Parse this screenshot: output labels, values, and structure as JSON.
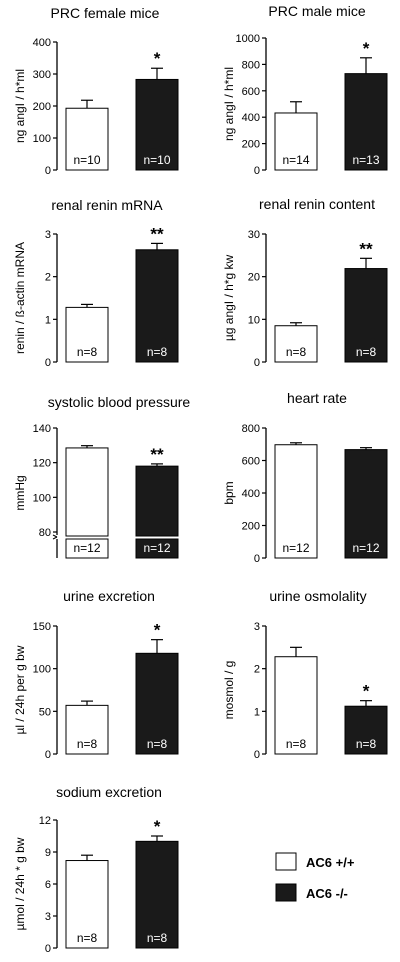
{
  "legend": {
    "items": [
      {
        "label": "AC6 +/+",
        "fill": "#ffffff"
      },
      {
        "label": "AC6 -/-",
        "fill": "#1a1a1a"
      }
    ]
  },
  "chart_data": [
    {
      "type": "bar",
      "title": "PRC female mice",
      "ylabel": "ng angI / h*ml",
      "ylim": [
        0,
        400
      ],
      "ticks": [
        0,
        100,
        200,
        300,
        400
      ],
      "categories": [
        "AC6 +/+",
        "AC6 -/-"
      ],
      "values": [
        193,
        283
      ],
      "errors": [
        25,
        35
      ],
      "n_labels": [
        "n=10",
        "n=10"
      ],
      "significance": "*",
      "axis_break": false
    },
    {
      "type": "bar",
      "title": "PRC male mice",
      "ylabel": "ng angI / h*ml",
      "ylim": [
        0,
        1000
      ],
      "ticks": [
        0,
        200,
        400,
        600,
        800,
        1000
      ],
      "categories": [
        "AC6 +/+",
        "AC6 -/-"
      ],
      "values": [
        432,
        730
      ],
      "errors": [
        85,
        120
      ],
      "n_labels": [
        "n=14",
        "n=13"
      ],
      "significance": "*",
      "axis_break": false
    },
    {
      "type": "bar",
      "title": "renal renin mRNA",
      "ylabel": "renin / ß-actin mRNA",
      "ylim": [
        0,
        3
      ],
      "ticks": [
        0,
        1,
        2,
        3
      ],
      "categories": [
        "AC6 +/+",
        "AC6 -/-"
      ],
      "values": [
        1.28,
        2.63
      ],
      "errors": [
        0.07,
        0.15
      ],
      "n_labels": [
        "n=8",
        "n=8"
      ],
      "significance": "**",
      "axis_break": false
    },
    {
      "type": "bar",
      "title": "renal renin content",
      "ylabel": "µg angI / h*g kw",
      "ylim": [
        0,
        30
      ],
      "ticks": [
        0,
        10,
        20,
        30
      ],
      "categories": [
        "AC6 +/+",
        "AC6 -/-"
      ],
      "values": [
        8.5,
        21.9
      ],
      "errors": [
        0.7,
        2.4
      ],
      "n_labels": [
        "n=8",
        "n=8"
      ],
      "significance": "**",
      "axis_break": false
    },
    {
      "type": "bar",
      "title": "systolic blood pressure",
      "ylabel": "mmHg",
      "ylim": [
        80,
        140
      ],
      "ticks": [
        80,
        100,
        120,
        140
      ],
      "categories": [
        "AC6 +/+",
        "AC6 -/-"
      ],
      "values": [
        128.5,
        118
      ],
      "errors": [
        1.3,
        1.3
      ],
      "n_labels": [
        "n=12",
        "n=12"
      ],
      "significance": "**",
      "axis_break": true
    },
    {
      "type": "bar",
      "title": "heart rate",
      "ylabel": "bpm",
      "ylim": [
        0,
        800
      ],
      "ticks": [
        0,
        200,
        400,
        600,
        800
      ],
      "categories": [
        "AC6 +/+",
        "AC6 -/-"
      ],
      "values": [
        697,
        667
      ],
      "errors": [
        12,
        12
      ],
      "n_labels": [
        "n=12",
        "n=12"
      ],
      "significance": "",
      "axis_break": false
    },
    {
      "type": "bar",
      "title": "urine excretion",
      "ylabel": "µl / 24h per g bw",
      "ylim": [
        0,
        150
      ],
      "ticks": [
        0,
        50,
        100,
        150
      ],
      "categories": [
        "AC6 +/+",
        "AC6 -/-"
      ],
      "values": [
        57,
        118
      ],
      "errors": [
        5,
        16
      ],
      "n_labels": [
        "n=8",
        "n=8"
      ],
      "significance": "*",
      "axis_break": false
    },
    {
      "type": "bar",
      "title": "urine osmolality",
      "ylabel": "mosmol / g",
      "ylim": [
        0,
        3
      ],
      "ticks": [
        0,
        1,
        2,
        3
      ],
      "categories": [
        "AC6 +/+",
        "AC6 -/-"
      ],
      "values": [
        2.28,
        1.12
      ],
      "errors": [
        0.22,
        0.13
      ],
      "n_labels": [
        "n=8",
        "n=8"
      ],
      "significance": "*",
      "axis_break": false
    },
    {
      "type": "bar",
      "title": "sodium excretion",
      "ylabel": "µmol / 24h * g bw",
      "ylim": [
        0,
        12
      ],
      "ticks": [
        0,
        3,
        6,
        9,
        12
      ],
      "categories": [
        "AC6 +/+",
        "AC6 -/-"
      ],
      "values": [
        8.2,
        10.0
      ],
      "errors": [
        0.5,
        0.5
      ],
      "n_labels": [
        "n=8",
        "n=8"
      ],
      "significance": "*",
      "axis_break": false
    }
  ]
}
